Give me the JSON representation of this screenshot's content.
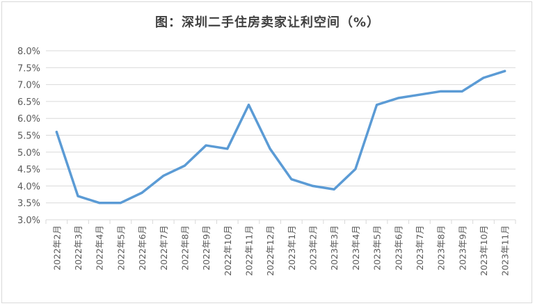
{
  "chart_data": {
    "type": "line",
    "title": "图：深圳二手住房卖家让利空间（%）",
    "categories": [
      "2022年2月",
      "2022年3月",
      "2022年4月",
      "2022年5月",
      "2022年6月",
      "2022年7月",
      "2022年8月",
      "2022年9月",
      "2022年10月",
      "2022年11月",
      "2022年12月",
      "2023年1月",
      "2023年2月",
      "2023年3月",
      "2023年4月",
      "2023年5月",
      "2023年6月",
      "2023年7月",
      "2023年8月",
      "2023年9月",
      "2023年10月",
      "2023年11月"
    ],
    "values": [
      5.6,
      3.7,
      3.5,
      3.5,
      3.8,
      4.3,
      4.6,
      5.2,
      5.1,
      6.4,
      5.1,
      4.2,
      4.0,
      3.9,
      4.5,
      6.4,
      6.6,
      6.7,
      6.8,
      6.8,
      7.2,
      7.4
    ],
    "ylim": [
      3.0,
      8.0
    ],
    "yticks": [
      "3.0%",
      "3.5%",
      "4.0%",
      "4.5%",
      "5.0%",
      "5.5%",
      "6.0%",
      "6.5%",
      "7.0%",
      "7.5%",
      "8.0%"
    ],
    "line_color": "#5b9bd5",
    "grid": true,
    "legend": "none"
  }
}
